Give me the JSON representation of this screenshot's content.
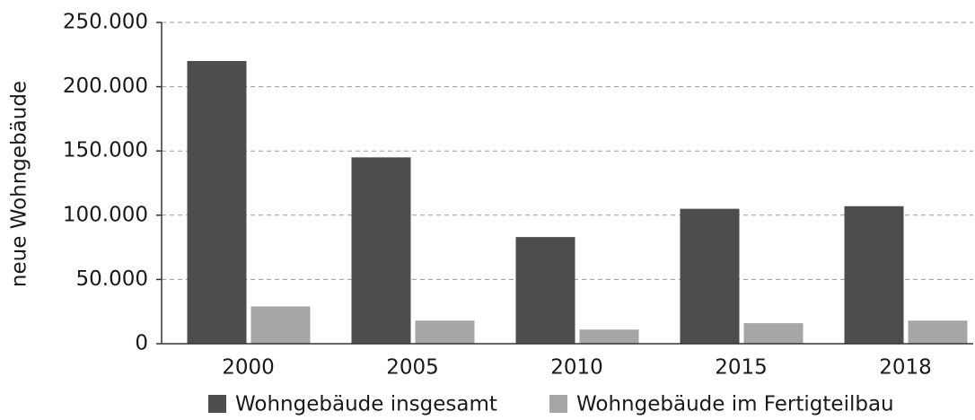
{
  "chart_data": {
    "type": "bar",
    "y_label": "neue Wohngebäude",
    "categories": [
      "2000",
      "2005",
      "2010",
      "2015",
      "2018"
    ],
    "series": [
      {
        "name": "Wohngebäude insgesamt",
        "color": "#4d4d4d",
        "values": [
          220000,
          145000,
          83000,
          105000,
          107000
        ]
      },
      {
        "name": "Wohngebäude im Fertigteilbau",
        "color": "#a6a6a6",
        "values": [
          29000,
          18000,
          11000,
          16000,
          18000
        ]
      }
    ],
    "ylim": [
      0,
      250000
    ],
    "yticks": [
      0,
      {
        "value": 50000,
        "label": "50.000"
      },
      {
        "value": 100000,
        "label": "100.000"
      },
      {
        "value": 150000,
        "label": "150.000"
      },
      {
        "value": 200000,
        "label": "200.000"
      },
      {
        "value": 250000,
        "label": "250.000"
      }
    ],
    "grid": true,
    "legend": "bottom"
  }
}
